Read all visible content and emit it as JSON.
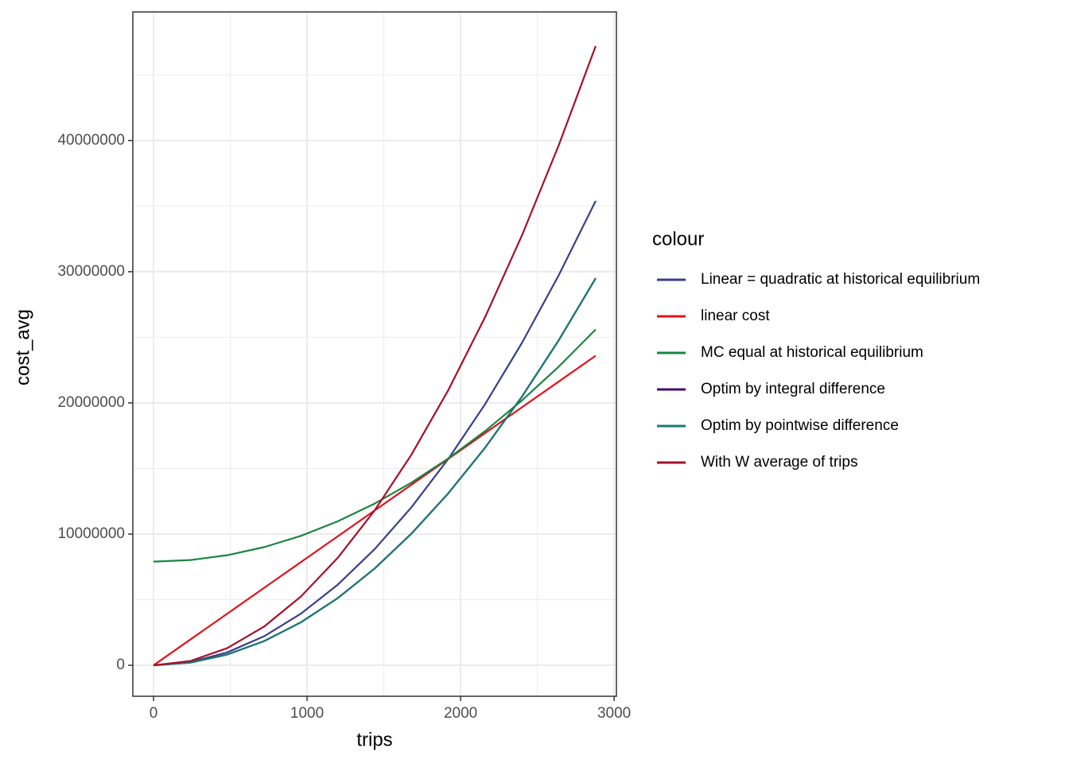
{
  "chart_data": {
    "type": "line",
    "x_label": "trips",
    "y_label": "cost_avg",
    "legend_title": "colour",
    "legend_position": "right",
    "x": [
      0,
      240,
      480,
      720,
      960,
      1200,
      1440,
      1680,
      1920,
      2160,
      2400,
      2640,
      2880
    ],
    "series": [
      {
        "name": "Linear = quadratic at historical equilibrium",
        "color": "#3a3f8a",
        "values": [
          0,
          245833,
          983333,
          2212500,
          3933333,
          6145833,
          8850000,
          12045833,
          15733333,
          19912500,
          24583333,
          29745833,
          35400000
        ]
      },
      {
        "name": "linear cost",
        "color": "#e3111b",
        "values": [
          0,
          1966667,
          3933333,
          5900000,
          7866667,
          9833333,
          11800000,
          13766667,
          15733333,
          17700000,
          19666667,
          21633333,
          23600000
        ]
      },
      {
        "name": "MC equal at historical equilibrium",
        "color": "#1b8440",
        "values": [
          7900000,
          8022917,
          8391667,
          9006250,
          9866667,
          10972917,
          12325000,
          13922917,
          15766667,
          17856250,
          20191667,
          22772917,
          25600000
        ]
      },
      {
        "name": "Optim by integral difference",
        "color": "#4a0d6b",
        "values": [
          0,
          204861,
          819444,
          1843750,
          3277778,
          5121528,
          7375000,
          10038194,
          13111111,
          16593750,
          20486111,
          24788194,
          29500000
        ]
      },
      {
        "name": "Optim by pointwise difference",
        "color": "#1a7a72",
        "values": [
          0,
          204861,
          819444,
          1843750,
          3277778,
          5121528,
          7375000,
          10038194,
          13111111,
          16593750,
          20486111,
          24788194,
          29500000
        ]
      },
      {
        "name": "With W average of trips",
        "color": "#a50f2a",
        "values": [
          0,
          327778,
          1311111,
          2950000,
          5244444,
          8194444,
          11800000,
          16061111,
          20977778,
          26550000,
          32777778,
          39661111,
          47200000
        ]
      }
    ],
    "xlim": [
      -135,
      3015
    ],
    "ylim": [
      -2360000,
      49800000
    ],
    "xticks": [
      0,
      1000,
      2000,
      3000
    ],
    "yticks": [
      0,
      10000000,
      20000000,
      30000000,
      40000000
    ],
    "minor_xticks": [
      500,
      1500,
      2500
    ],
    "minor_yticks": [
      5000000,
      15000000,
      25000000,
      35000000,
      45000000
    ],
    "grid": true
  }
}
